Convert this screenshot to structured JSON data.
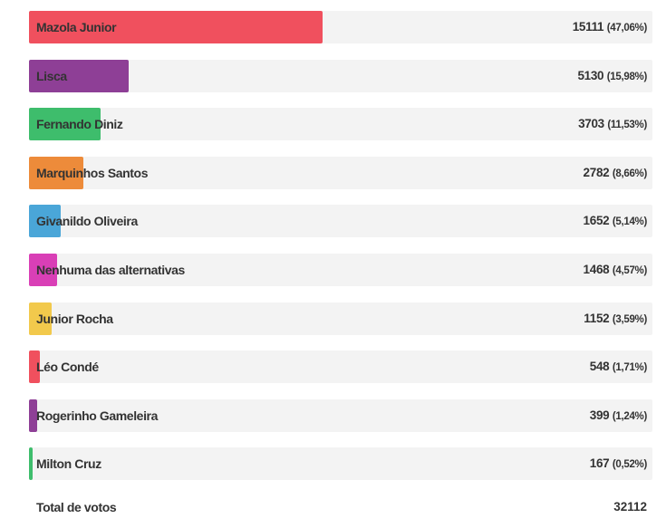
{
  "chart_data": {
    "type": "bar",
    "orientation": "horizontal",
    "categories": [
      "Mazola Junior",
      "Lisca",
      "Fernando Diniz",
      "Marquinhos Santos",
      "Givanildo Oliveira",
      "Nenhuma das alternativas",
      "Junior Rocha",
      "Léo Condé",
      "Rogerinho Gameleira",
      "Milton Cruz"
    ],
    "values": [
      15111,
      5130,
      3703,
      2782,
      1652,
      1468,
      1152,
      548,
      399,
      167
    ],
    "percent_labels": [
      "(47,06%)",
      "(15,98%)",
      "(11,53%)",
      "(8,66%)",
      "(5,14%)",
      "(4,57%)",
      "(3,59%)",
      "(1,71%)",
      "(1,24%)",
      "(0,52%)"
    ],
    "percents": [
      47.06,
      15.98,
      11.53,
      8.66,
      5.14,
      4.57,
      3.59,
      1.71,
      1.24,
      0.52
    ],
    "colors": [
      "#f0505e",
      "#8e3f96",
      "#3ebd6c",
      "#ed8b3a",
      "#4aa6d8",
      "#d93fb6",
      "#f2c94c",
      "#f0505e",
      "#8e3f96",
      "#3ebd6c"
    ],
    "xlim": [
      0,
      100
    ],
    "grid": false,
    "legend": "none"
  },
  "total": {
    "label": "Total de votos",
    "value": "32112"
  }
}
